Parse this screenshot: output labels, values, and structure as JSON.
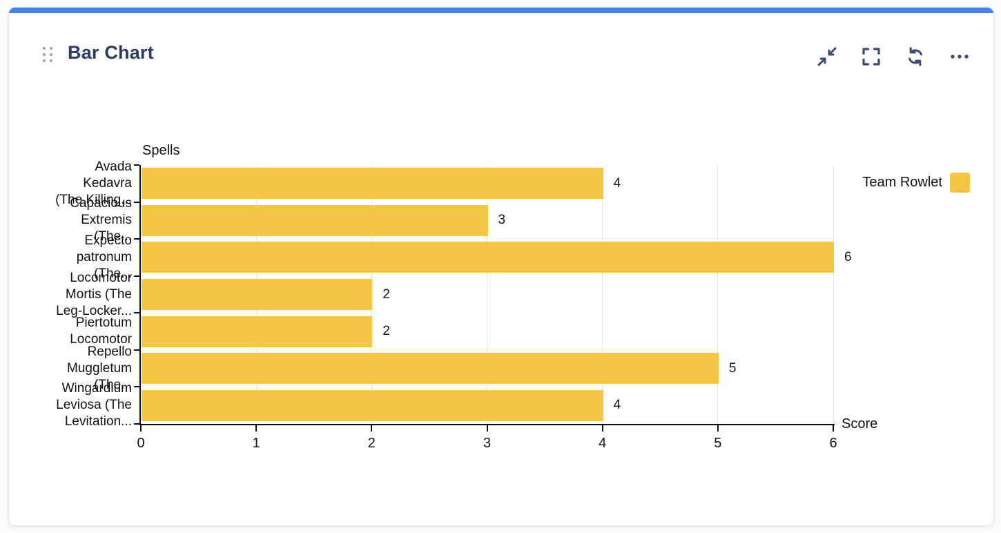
{
  "page": {
    "accent_color": "#4580EB"
  },
  "header": {
    "title": "Bar Chart",
    "icon_color": "#3d4c6e",
    "actions": [
      "collapse",
      "fullscreen",
      "refresh",
      "more-options"
    ]
  },
  "chart_data": {
    "type": "bar",
    "orientation": "horizontal",
    "title": "",
    "xlabel": "Score",
    "ylabel": "Spells",
    "xlim": [
      0,
      6
    ],
    "x_ticks": [
      0,
      1,
      2,
      3,
      4,
      5,
      6
    ],
    "grid": true,
    "legend": {
      "position": "top-right",
      "entries": [
        {
          "label": "Team Rowlet",
          "color": "#F5C545"
        }
      ]
    },
    "categories": [
      "Avada Kedavra (The Killing...",
      "Capacious Extremis (The...",
      "Expecto patronum (The...",
      "Locomotor Mortis (The Leg-Locker...",
      "Piertotum Locomotor",
      "Repello Muggletum (The...",
      "Wingardium Leviosa (The Levitation..."
    ],
    "category_label_lines": [
      [
        "Avada",
        "Kedavra",
        "(The Killing..."
      ],
      [
        "Capacious",
        "Extremis",
        "(The..."
      ],
      [
        "Expecto",
        "patronum",
        "(The..."
      ],
      [
        "Locomotor",
        "Mortis (The",
        "Leg-Locker..."
      ],
      [
        "Piertotum",
        "Locomotor"
      ],
      [
        "Repello",
        "Muggletum",
        "(The..."
      ],
      [
        "Wingardium",
        "Leviosa (The",
        "Levitation..."
      ]
    ],
    "series": [
      {
        "name": "Team Rowlet",
        "color": "#F5C545",
        "values": [
          4,
          3,
          6,
          2,
          2,
          5,
          4
        ]
      }
    ]
  }
}
